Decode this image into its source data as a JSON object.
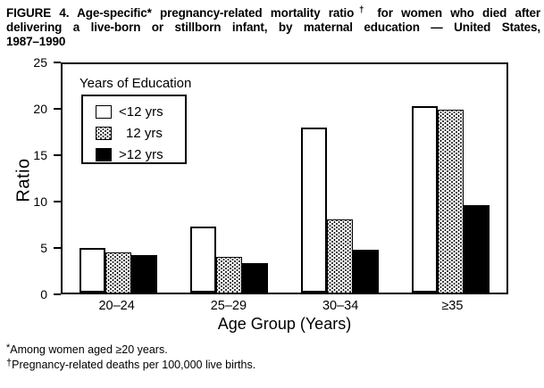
{
  "colors": {
    "ink": "#000000",
    "paper": "#ffffff"
  },
  "figure": {
    "title": {
      "l1a": "FIGURE 4. Age-specific* pregnancy-related mortality ratio",
      "l1sup": "†",
      "l1b": " for women who died after",
      "l2": "delivering a live-born or stillborn infant, by maternal education — United States,",
      "l3": "1987–1990"
    },
    "footnotes": [
      {
        "marker": "*",
        "text": "Among women aged ≥20 years."
      },
      {
        "marker": "†",
        "text": "Pregnancy-related deaths per 100,000 live births."
      }
    ]
  },
  "chart_data": {
    "type": "bar",
    "title": "FIGURE 4. Age-specific* pregnancy-related mortality ratio† for women who died after delivering a live-born or stillborn infant, by maternal education — United States, 1987–1990",
    "categories": [
      "20–24",
      "25–29",
      "30–34",
      "≥35"
    ],
    "series": [
      {
        "name": "<12 yrs",
        "fill": "white",
        "values": [
          4.9,
          7.2,
          18.1,
          20.4
        ]
      },
      {
        "name": "12 yrs",
        "fill": "stipple",
        "values": [
          4.4,
          3.9,
          8.0,
          20.0
        ]
      },
      {
        "name": ">12 yrs",
        "fill": "black",
        "values": [
          4.1,
          3.2,
          4.7,
          9.6
        ]
      }
    ],
    "xlabel": "Age Group (Years)",
    "ylabel": "Ratio",
    "ylim": [
      0,
      25
    ],
    "yticks": [
      0,
      5,
      10,
      15,
      20,
      25
    ],
    "legend_title": "Years of Education",
    "legend_position": "inside-top-left",
    "grid": false
  }
}
